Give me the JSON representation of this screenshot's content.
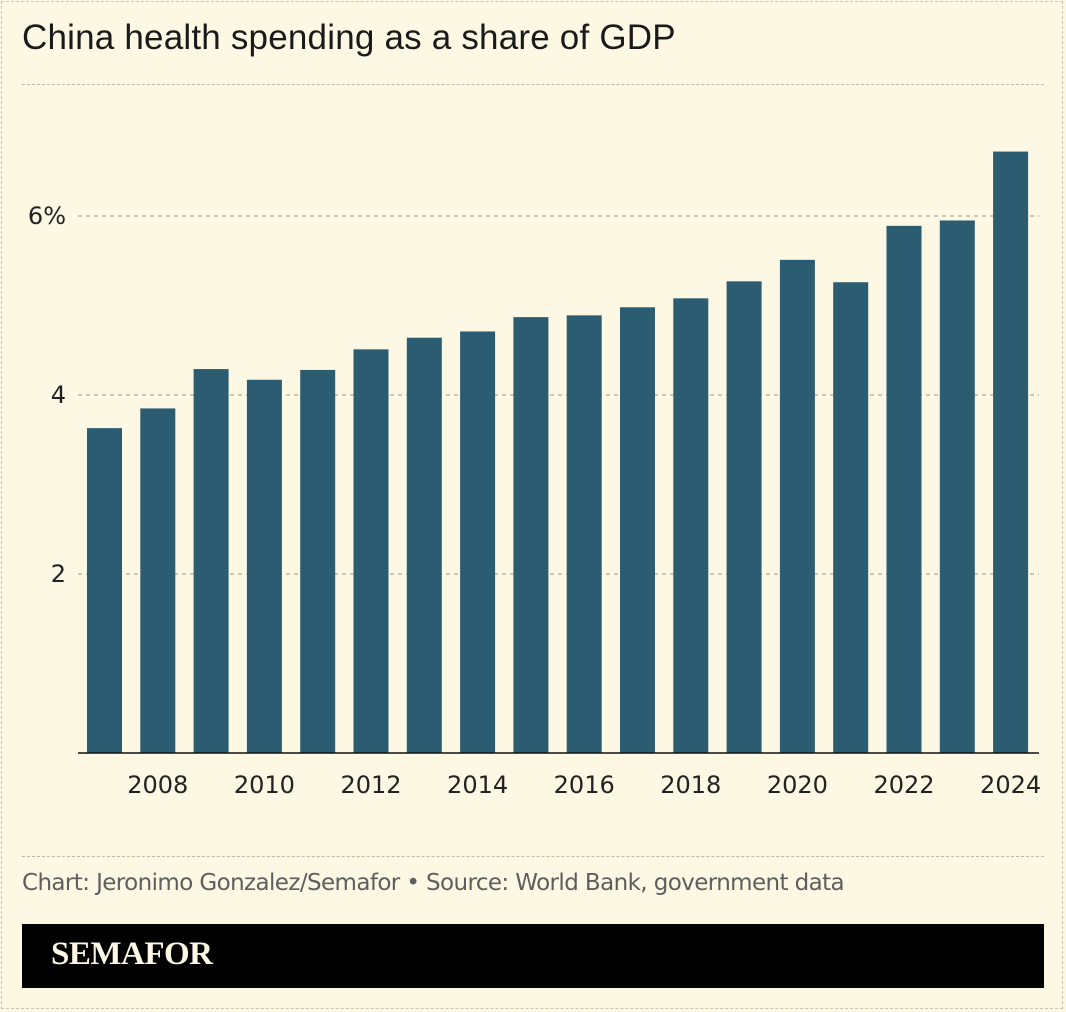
{
  "title": "China health spending as a share of GDP",
  "source": "Chart: Jeronimo Gonzalez/Semafor • Source: World Bank, government data",
  "brand": "SEMAFOR",
  "colors": {
    "background": "#fcf8e3",
    "bar": "#2b5c72",
    "brand_bar": "#000000"
  },
  "chart_data": {
    "type": "bar",
    "categories": [
      "2007",
      "2008",
      "2009",
      "2010",
      "2011",
      "2012",
      "2013",
      "2014",
      "2015",
      "2016",
      "2017",
      "2018",
      "2019",
      "2020",
      "2021",
      "2022",
      "2023",
      "2024"
    ],
    "values": [
      3.63,
      3.85,
      4.29,
      4.17,
      4.28,
      4.51,
      4.64,
      4.71,
      4.87,
      4.89,
      4.98,
      5.08,
      5.27,
      5.51,
      5.26,
      5.89,
      5.95,
      6.72
    ],
    "x_tick_labels": [
      "2008",
      "2010",
      "2012",
      "2014",
      "2016",
      "2018",
      "2020",
      "2022",
      "2024"
    ],
    "y_tick_labels": [
      "2",
      "4",
      "6%"
    ],
    "y_ticks": [
      2,
      4,
      6
    ],
    "ylim": [
      0,
      7.5
    ],
    "grid": true,
    "xlabel": "",
    "ylabel": ""
  }
}
